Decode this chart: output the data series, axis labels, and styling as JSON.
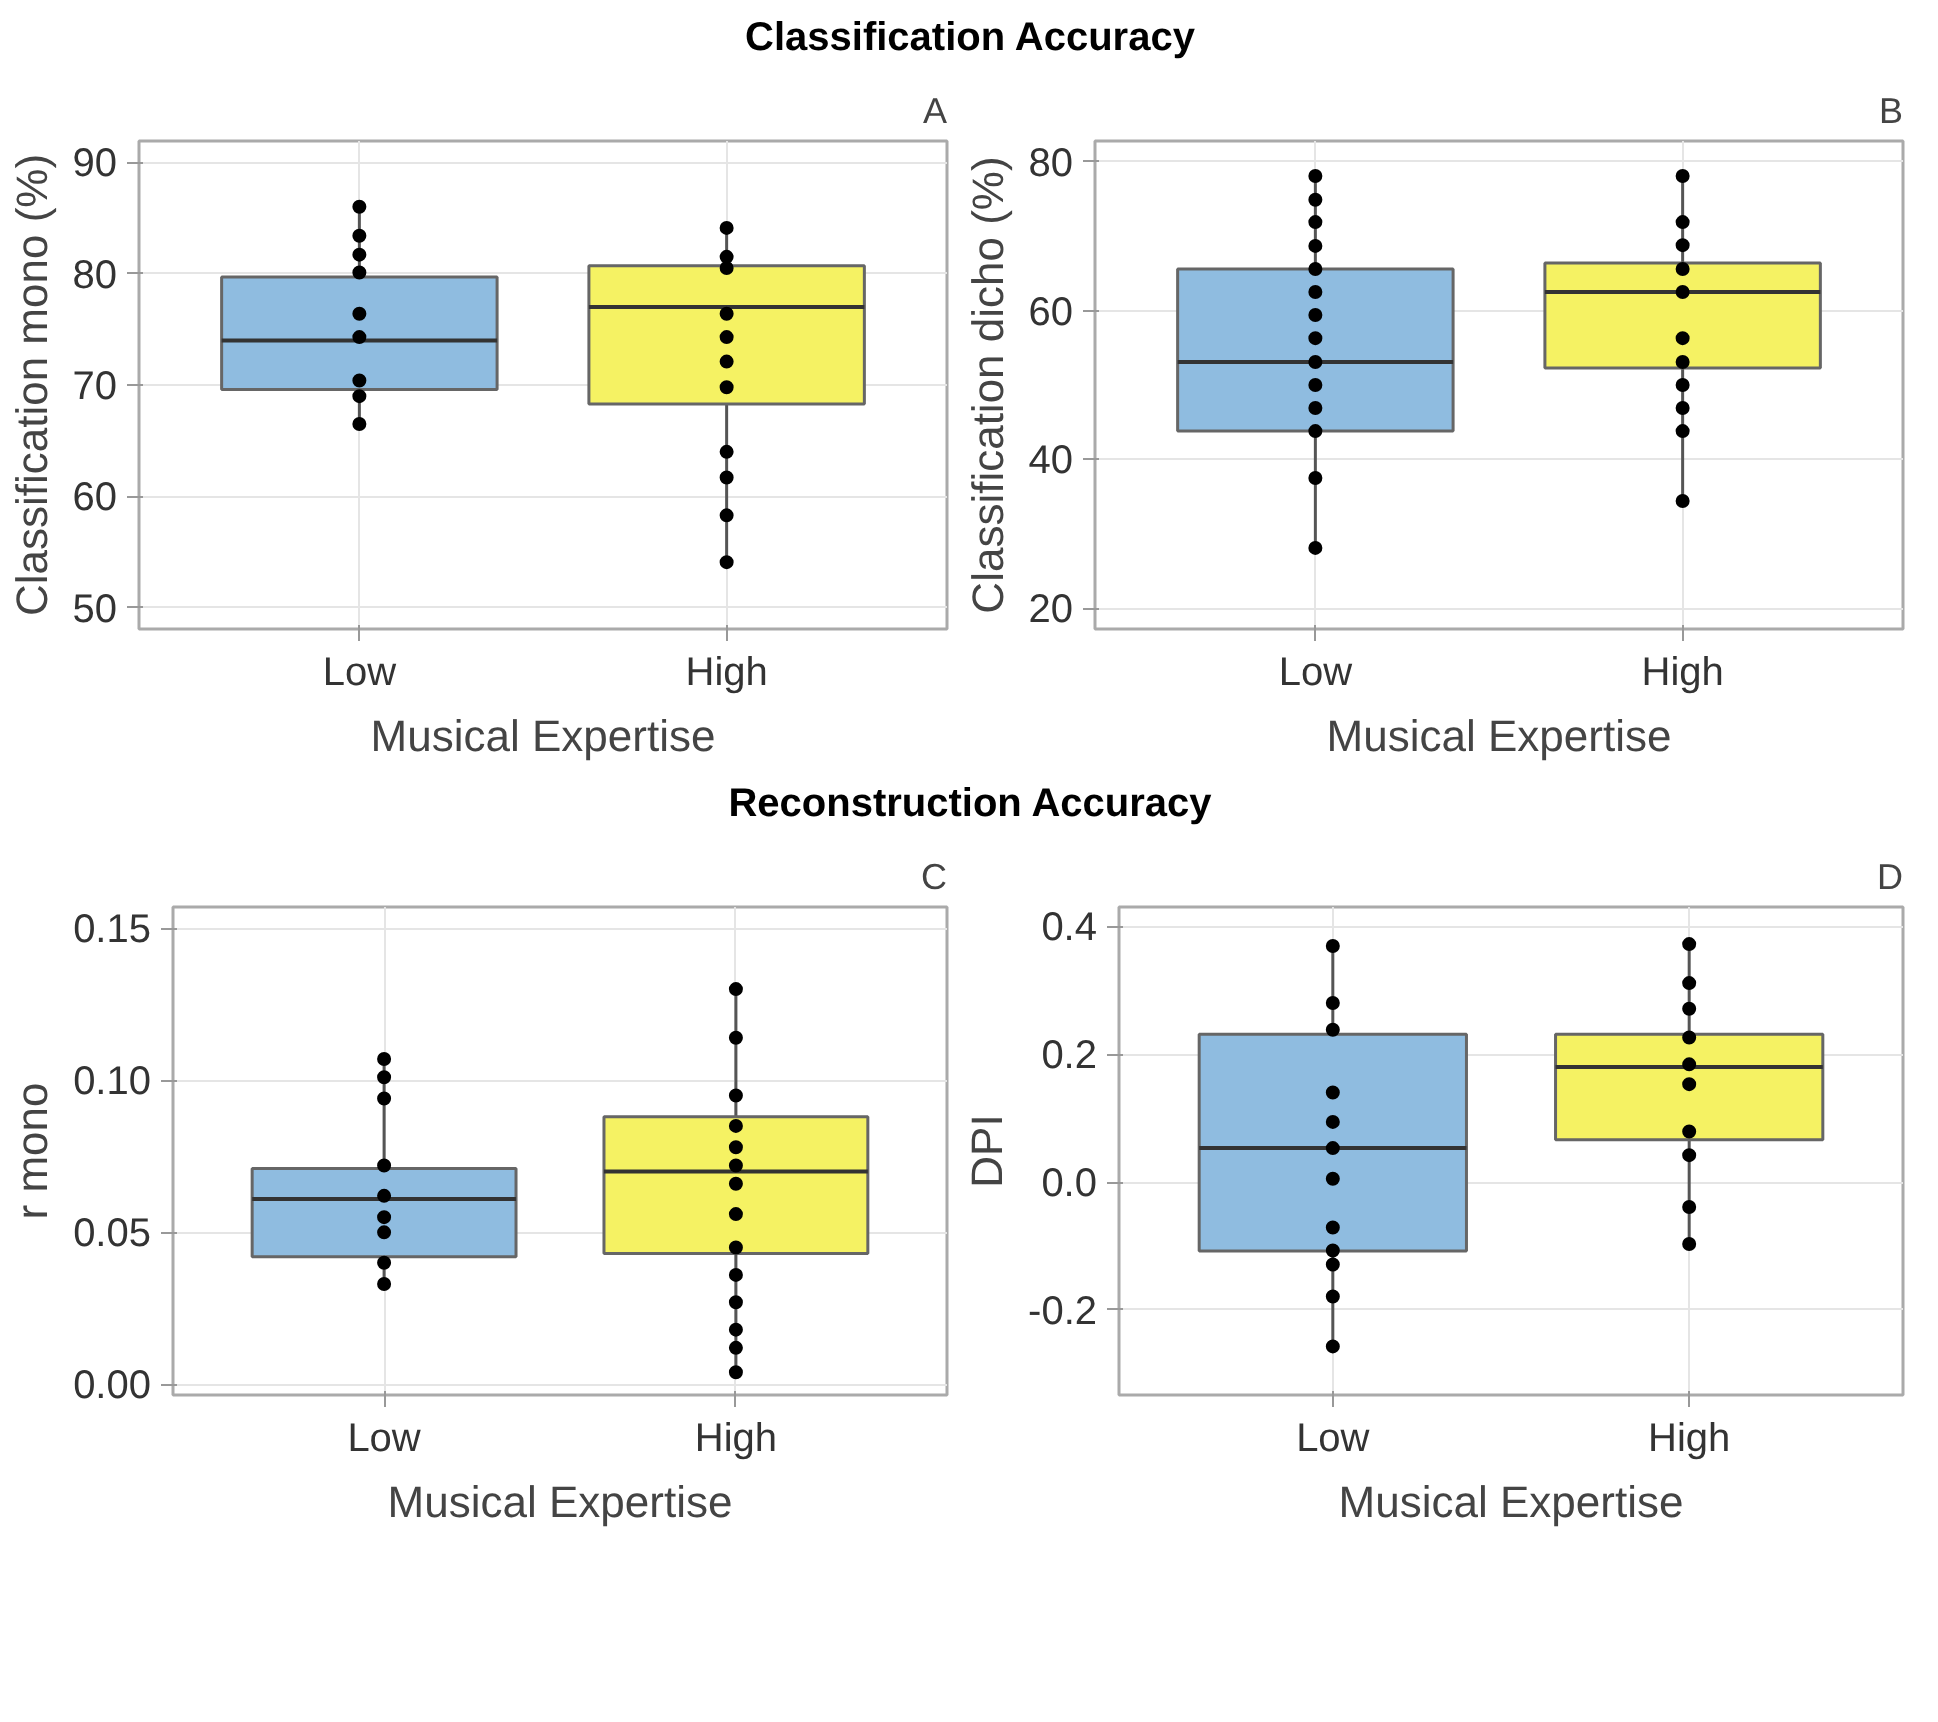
{
  "chart_data": [
    {
      "type": "box",
      "title": "Classification Accuracy",
      "annotations": [
        "A"
      ],
      "categories": [
        "Low",
        "High"
      ],
      "xlabel": "Musical Expertise",
      "ylabel": "Classification mono (%)",
      "ylim": [
        48.1,
        91.9
      ],
      "yticks": [
        50,
        60,
        70,
        80,
        90
      ],
      "grid": true,
      "marker": "circle",
      "colors": [
        "#8fbce0",
        "#f5f263"
      ],
      "boxes": [
        {
          "low": 66.5,
          "q1": 69.6,
          "median": 74.0,
          "q3": 79.7,
          "high": 86.0
        },
        {
          "low": 54.1,
          "q1": 68.3,
          "median": 77.0,
          "q3": 80.7,
          "high": 84.1
        }
      ],
      "series": [
        {
          "type": "scatter",
          "color": "#000000",
          "x": [
            "Low",
            "Low",
            "Low",
            "Low",
            "Low",
            "Low",
            "Low",
            "Low",
            "Low",
            "High",
            "High",
            "High",
            "High",
            "High",
            "High",
            "High",
            "High",
            "High",
            "High",
            "High"
          ],
          "values": [
            86.0,
            83.4,
            81.7,
            80.1,
            76.4,
            74.3,
            70.4,
            69.0,
            66.5,
            84.1,
            81.5,
            80.5,
            76.4,
            74.3,
            72.1,
            69.8,
            64.0,
            61.7,
            58.3,
            54.1
          ]
        }
      ]
    },
    {
      "type": "box",
      "annotations": [
        "B"
      ],
      "categories": [
        "Low",
        "High"
      ],
      "xlabel": "Musical Expertise",
      "ylabel": "Classification dicho (%)",
      "ylim": [
        17.2,
        82.8
      ],
      "yticks": [
        20,
        40,
        60,
        80
      ],
      "grid": true,
      "marker": "circle",
      "colors": [
        "#8fbce0",
        "#f5f263"
      ],
      "boxes": [
        {
          "low": 28.1,
          "q1": 43.8,
          "median": 53.1,
          "q3": 65.6,
          "high": 78.1
        },
        {
          "low": 34.4,
          "q1": 52.3,
          "median": 62.5,
          "q3": 66.4,
          "high": 78.1
        }
      ],
      "series": [
        {
          "type": "scatter",
          "color": "#000000",
          "x": [
            "Low",
            "Low",
            "Low",
            "Low",
            "Low",
            "Low",
            "Low",
            "Low",
            "Low",
            "Low",
            "Low",
            "Low",
            "Low",
            "Low",
            "High",
            "High",
            "High",
            "High",
            "High",
            "High",
            "High",
            "High",
            "High",
            "High",
            "High"
          ],
          "values": [
            78.1,
            74.9,
            71.9,
            68.7,
            65.6,
            62.5,
            59.4,
            56.3,
            53.1,
            50.0,
            46.9,
            43.8,
            37.5,
            28.1,
            78.1,
            71.9,
            68.8,
            65.6,
            62.5,
            56.3,
            53.1,
            50.0,
            46.9,
            43.8,
            34.4
          ]
        }
      ]
    },
    {
      "type": "box",
      "title": "Reconstruction Accuracy",
      "annotations": [
        "C"
      ],
      "categories": [
        "Low",
        "High"
      ],
      "xlabel": "Musical Expertise",
      "ylabel": "r mono",
      "ylim": [
        -0.0035,
        0.157
      ],
      "yticks": [
        {
          "value": 0,
          "label": "0.00"
        },
        0.05,
        {
          "value": 0.1,
          "label": "0.10"
        },
        0.15
      ],
      "grid": true,
      "marker": "circle",
      "colors": [
        "#8fbce0",
        "#f5f263"
      ],
      "boxes": [
        {
          "low": 0.033,
          "q1": 0.042,
          "median": 0.061,
          "q3": 0.071,
          "high": 0.107
        },
        {
          "low": 0.004,
          "q1": 0.043,
          "median": 0.07,
          "q3": 0.088,
          "high": 0.13
        }
      ],
      "series": [
        {
          "type": "scatter",
          "color": "#000000",
          "x": [
            "Low",
            "Low",
            "Low",
            "Low",
            "Low",
            "Low",
            "Low",
            "Low",
            "Low",
            "High",
            "High",
            "High",
            "High",
            "High",
            "High",
            "High",
            "High",
            "High",
            "High",
            "High",
            "High",
            "High",
            "High"
          ],
          "values": [
            0.107,
            0.101,
            0.094,
            0.072,
            0.062,
            0.055,
            0.05,
            0.04,
            0.033,
            0.13,
            0.114,
            0.095,
            0.085,
            0.078,
            0.072,
            0.066,
            0.056,
            0.045,
            0.036,
            0.027,
            0.018,
            0.012,
            0.004
          ]
        }
      ]
    },
    {
      "type": "box",
      "annotations": [
        "D"
      ],
      "categories": [
        "Low",
        "High"
      ],
      "xlabel": "Musical Expertise",
      "ylabel": "DPI",
      "ylim": [
        -0.333,
        0.43
      ],
      "yticks": [
        {
          "value": -0.2,
          "label": "-0.2"
        },
        {
          "value": 0,
          "label": "0.0"
        },
        0.2,
        0.4
      ],
      "grid": true,
      "marker": "circle",
      "colors": [
        "#8fbce0",
        "#f5f263"
      ],
      "boxes": [
        {
          "low": -0.257,
          "q1": -0.108,
          "median": 0.053,
          "q3": 0.231,
          "high": 0.369
        },
        {
          "low": -0.097,
          "q1": 0.066,
          "median": 0.18,
          "q3": 0.231,
          "high": 0.372
        }
      ],
      "series": [
        {
          "type": "scatter",
          "color": "#000000",
          "x": [
            "Low",
            "Low",
            "Low",
            "Low",
            "Low",
            "Low",
            "Low",
            "Low",
            "Low",
            "Low",
            "Low",
            "Low",
            "High",
            "High",
            "High",
            "High",
            "High",
            "High",
            "High",
            "High",
            "High",
            "High"
          ],
          "values": [
            0.369,
            0.28,
            0.238,
            0.14,
            0.094,
            0.053,
            0.005,
            -0.071,
            -0.107,
            -0.129,
            -0.179,
            -0.257,
            0.372,
            0.311,
            0.271,
            0.226,
            0.184,
            0.153,
            0.079,
            0.042,
            -0.039,
            -0.097
          ]
        }
      ]
    }
  ]
}
